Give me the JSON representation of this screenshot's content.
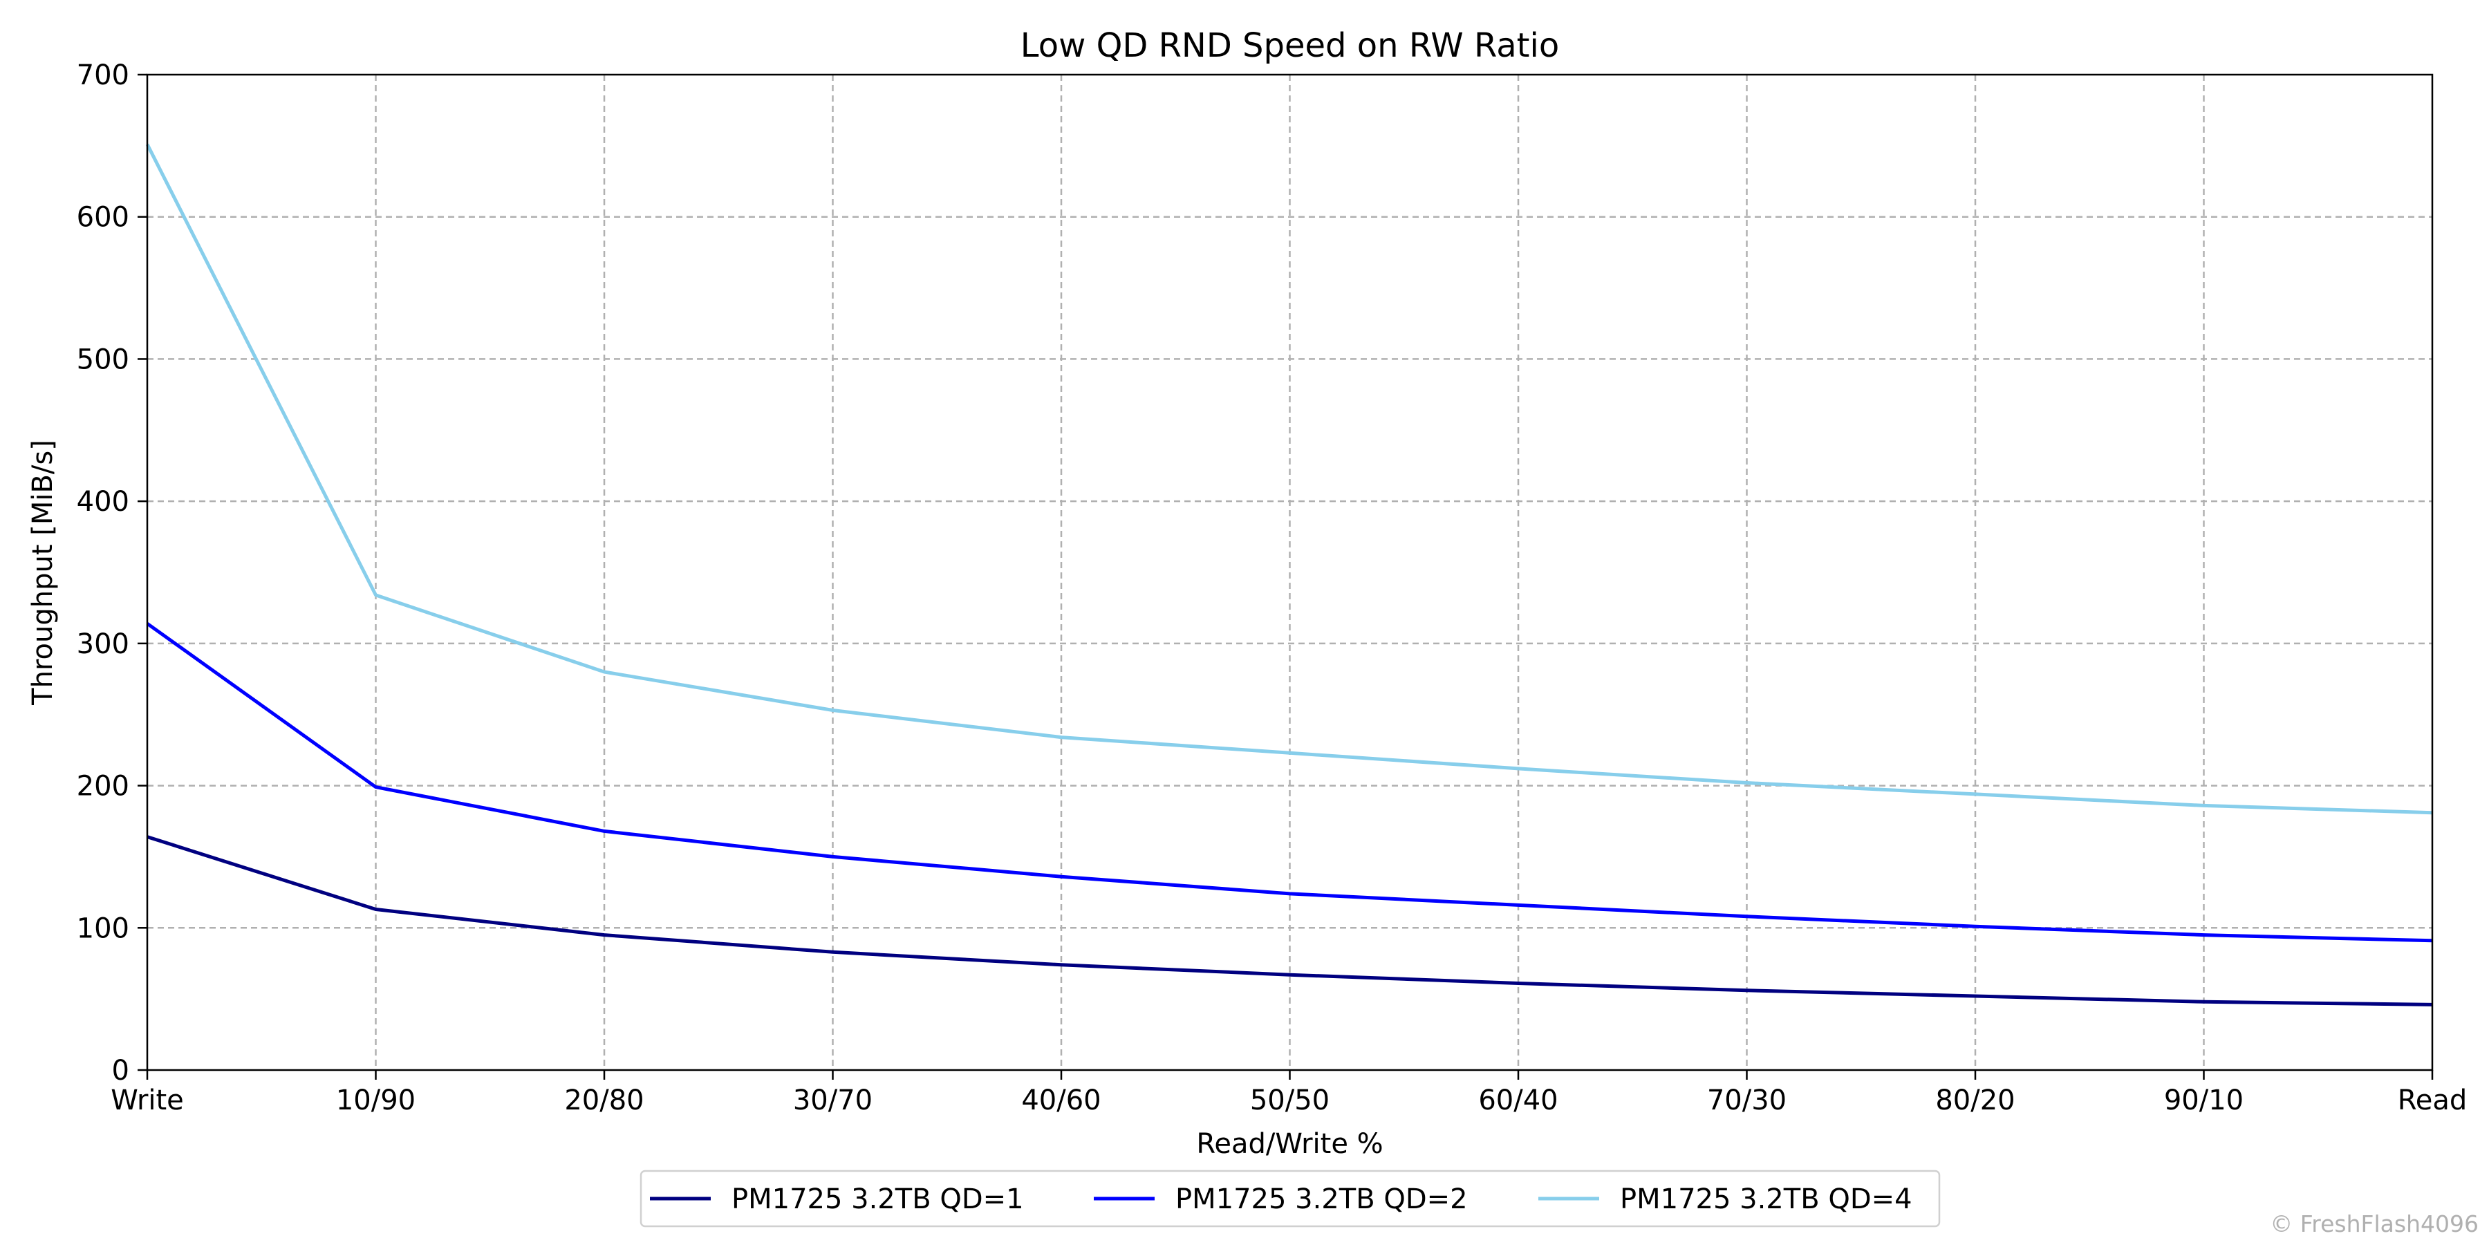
{
  "chart_data": {
    "type": "line",
    "title": "Low QD RND Speed on RW Ratio",
    "xlabel": "Read/Write %",
    "ylabel": "Throughput [MiB/s]",
    "categories": [
      "Write",
      "10/90",
      "20/80",
      "30/70",
      "40/60",
      "50/50",
      "60/40",
      "70/30",
      "80/20",
      "90/10",
      "Read"
    ],
    "ylim": [
      0,
      700
    ],
    "yticks": [
      0,
      100,
      200,
      300,
      400,
      500,
      600,
      700
    ],
    "grid": true,
    "legend_position": "bottom-center",
    "series": [
      {
        "name": "PM1725 3.2TB QD=1",
        "color": "#000080",
        "values": [
          164,
          113,
          95,
          83,
          74,
          67,
          61,
          56,
          52,
          48,
          46
        ]
      },
      {
        "name": "PM1725 3.2TB QD=2",
        "color": "#0000ff",
        "values": [
          314,
          199,
          168,
          150,
          136,
          124,
          116,
          108,
          101,
          95,
          91
        ]
      },
      {
        "name": "PM1725 3.2TB QD=4",
        "color": "#87ceeb",
        "values": [
          651,
          334,
          280,
          253,
          234,
          223,
          212,
          202,
          194,
          186,
          181
        ]
      }
    ]
  },
  "watermark": "© FreshFlash4096"
}
